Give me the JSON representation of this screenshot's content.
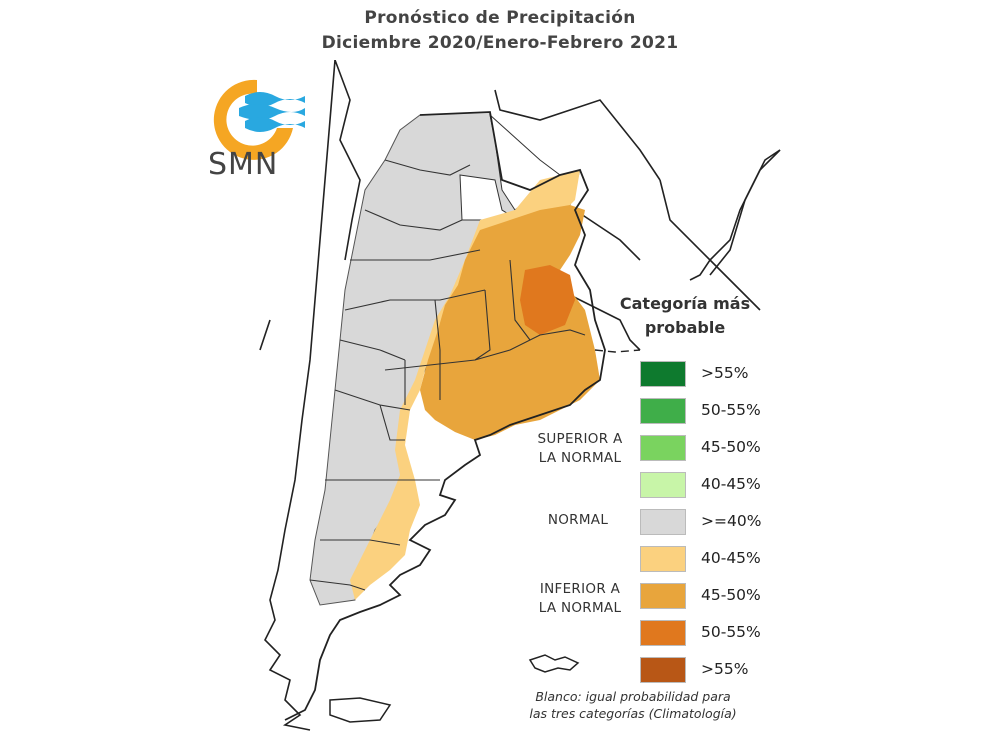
{
  "title": {
    "line1": "Pronóstico de Precipitación",
    "line2": "Diciembre 2020/Enero-Febrero 2021"
  },
  "logo": {
    "text": "SMN",
    "colors": {
      "sun": "#f5a623",
      "waves": "#29a8e0"
    }
  },
  "legend": {
    "title_line1": "Categoría más",
    "title_line2": "probable",
    "groups": [
      {
        "label_line1": "SUPERIOR A",
        "label_line2": "LA NORMAL"
      },
      {
        "label_line1": "NORMAL",
        "label_line2": ""
      },
      {
        "label_line1": "INFERIOR A",
        "label_line2": "LA NORMAL"
      }
    ],
    "items": [
      {
        "label": ">55%",
        "color": "#0e7a2e"
      },
      {
        "label": "50-55%",
        "color": "#3fae49"
      },
      {
        "label": "45-50%",
        "color": "#7ad35f"
      },
      {
        "label": "40-45%",
        "color": "#c8f5a8"
      },
      {
        "label": ">=40%",
        "color": "#d8d8d8"
      },
      {
        "label": "40-45%",
        "color": "#fbd17f"
      },
      {
        "label": "45-50%",
        "color": "#e8a53c"
      },
      {
        "label": "50-55%",
        "color": "#e0781e"
      },
      {
        "label": ">55%",
        "color": "#b85716"
      }
    ]
  },
  "footnote": {
    "line1": "Blanco: igual probabilidad para",
    "line2": "las tres categorías (Climatología)"
  }
}
